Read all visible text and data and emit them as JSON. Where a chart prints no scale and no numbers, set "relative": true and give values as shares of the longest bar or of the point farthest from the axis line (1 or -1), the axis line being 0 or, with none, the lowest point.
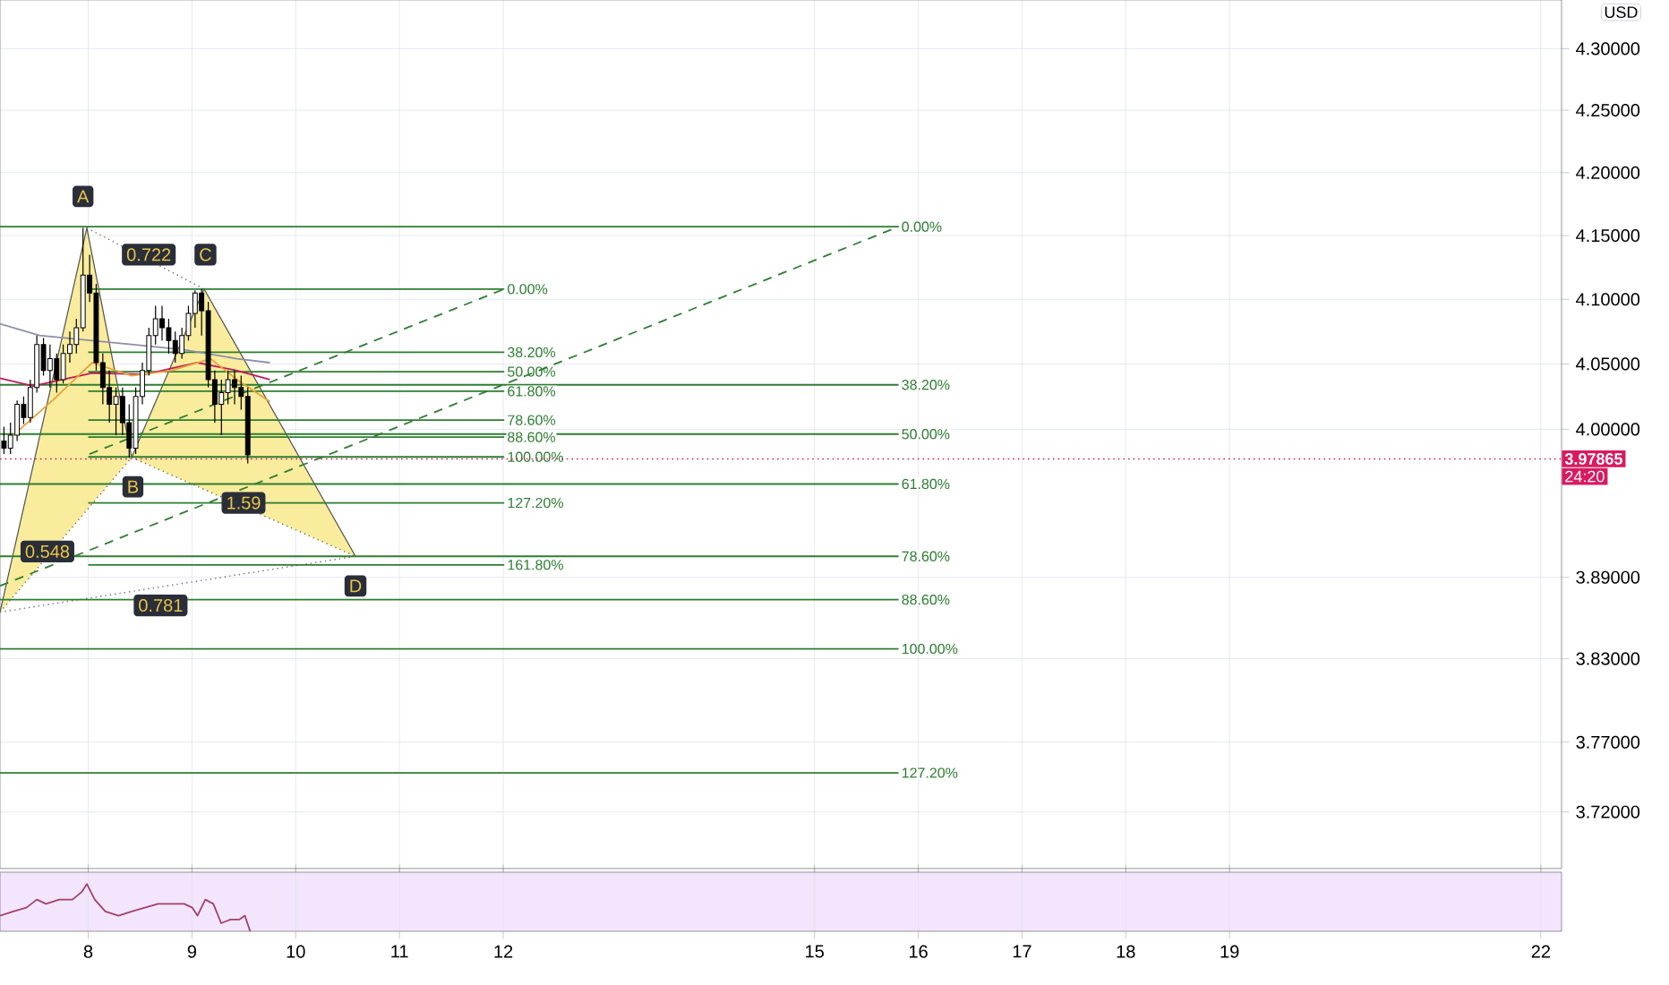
{
  "chart_data": [
    {
      "type": "candlestick",
      "log": "y",
      "grid": true,
      "tick_labels": "y",
      "xlim": [
        7.15,
        22.2
      ],
      "ylim": [
        3.68,
        4.34
      ],
      "xticks": [
        8,
        9,
        10,
        11,
        12,
        15,
        16,
        17,
        18,
        19,
        22
      ],
      "yticks": [
        {
          "value": 4.3,
          "label": "4.30000"
        },
        {
          "value": 4.25,
          "label": "4.25000"
        },
        {
          "value": 4.2,
          "label": "4.20000"
        },
        {
          "value": 4.15,
          "label": "4.15000"
        },
        {
          "value": 4.1,
          "label": "4.10000"
        },
        {
          "value": 4.05,
          "label": "4.05000"
        },
        {
          "value": 4.0,
          "label": "4.00000"
        },
        {
          "value": 3.89,
          "label": "3.89000"
        },
        {
          "value": 3.83,
          "label": "3.83000"
        },
        {
          "value": 3.77,
          "label": "3.77000"
        },
        {
          "value": 3.72,
          "label": "3.72000"
        }
      ],
      "series": [
        {
          "type": "area",
          "color": "#f9ec9d",
          "x": [
            7.15,
            7.987,
            8.419,
            9.117,
            10.576
          ],
          "values": [
            3.864,
            4.156,
            3.979,
            4.108,
            3.905
          ]
        },
        {
          "type": "line",
          "name": "0.00%",
          "color": "#2e7d32",
          "x": [
            7.15,
            15.81
          ],
          "values": [
            4.157,
            4.157
          ]
        },
        {
          "type": "line",
          "name": "38.20%",
          "color": "#2e7d32",
          "x": [
            7.15,
            15.81
          ],
          "values": [
            4.034,
            4.034
          ]
        },
        {
          "type": "line",
          "name": "50.00%",
          "color": "#2e7d32",
          "x": [
            7.15,
            15.81
          ],
          "values": [
            3.997,
            3.997
          ]
        },
        {
          "type": "line",
          "name": "61.80%",
          "color": "#2e7d32",
          "x": [
            7.15,
            15.81
          ],
          "values": [
            3.959,
            3.959
          ]
        },
        {
          "type": "line",
          "name": "78.60%",
          "color": "#2e7d32",
          "x": [
            7.15,
            15.81
          ],
          "values": [
            3.905,
            3.905
          ]
        },
        {
          "type": "line",
          "name": "88.60%",
          "color": "#2e7d32",
          "x": [
            7.15,
            15.81
          ],
          "values": [
            3.873,
            3.873
          ]
        },
        {
          "type": "line",
          "name": "100.00%",
          "color": "#2e7d32",
          "x": [
            7.15,
            15.81
          ],
          "values": [
            3.837,
            3.837
          ]
        },
        {
          "type": "line",
          "name": "127.20%",
          "color": "#2e7d32",
          "x": [
            7.15,
            15.81
          ],
          "values": [
            3.748,
            3.748
          ]
        },
        {
          "type": "line",
          "name": "0.00%",
          "color": "#2e7d32",
          "x": [
            8.0,
            12.01
          ],
          "values": [
            4.108,
            4.108
          ]
        },
        {
          "type": "line",
          "name": "38.20%",
          "color": "#2e7d32",
          "x": [
            8.0,
            12.01
          ],
          "values": [
            4.059,
            4.059
          ]
        },
        {
          "type": "line",
          "name": "50.00%",
          "color": "#2e7d32",
          "x": [
            8.0,
            12.01
          ],
          "values": [
            4.044,
            4.044
          ]
        },
        {
          "type": "line",
          "name": "61.80%",
          "color": "#2e7d32",
          "x": [
            8.0,
            12.01
          ],
          "values": [
            4.029,
            4.029
          ]
        },
        {
          "type": "line",
          "name": "78.60%",
          "color": "#2e7d32",
          "x": [
            8.0,
            12.01
          ],
          "values": [
            4.007,
            4.007
          ]
        },
        {
          "type": "line",
          "name": "88.60%",
          "color": "#2e7d32",
          "x": [
            8.0,
            12.01
          ],
          "values": [
            3.995,
            3.995
          ]
        },
        {
          "type": "line",
          "name": "100.00%",
          "color": "#2e7d32",
          "x": [
            8.0,
            12.01
          ],
          "values": [
            3.98,
            3.98
          ]
        },
        {
          "type": "line",
          "name": "127.20%",
          "color": "#2e7d32",
          "x": [
            8.0,
            12.01
          ],
          "values": [
            3.945,
            3.945
          ]
        },
        {
          "type": "line",
          "name": "161.80%",
          "color": "#2e7d32",
          "x": [
            8.0,
            12.01
          ],
          "values": [
            3.899,
            3.899
          ]
        },
        {
          "type": "line",
          "line_style": "dashed",
          "color": "#2e7d32",
          "x": [
            7.15,
            15.81
          ],
          "values": [
            3.883,
            4.157
          ]
        },
        {
          "type": "line",
          "line_style": "dashed",
          "color": "#2e7d32",
          "x": [
            8.013,
            12.01
          ],
          "values": [
            3.982,
            4.108
          ]
        },
        {
          "type": "line",
          "color": "#8e8ea8",
          "x": [
            7.15,
            7.531,
            8.038,
            8.419,
            8.926,
            9.434,
            9.751
          ],
          "values": [
            4.081,
            4.072,
            4.068,
            4.065,
            4.061,
            4.054,
            4.051
          ]
        },
        {
          "type": "line",
          "color": "#c2185b",
          "x": [
            7.15,
            7.467,
            8.038,
            8.546,
            9.053,
            9.434,
            9.751
          ],
          "values": [
            4.039,
            4.033,
            4.043,
            4.042,
            4.051,
            4.045,
            4.038
          ]
        },
        {
          "type": "line",
          "color": "#e6a23c",
          "x": [
            7.277,
            7.657,
            8.038,
            8.419,
            8.799,
            9.18,
            9.434,
            9.751
          ],
          "values": [
            3.996,
            4.022,
            4.051,
            4.041,
            4.045,
            4.054,
            4.038,
            4.021
          ]
        },
        {
          "type": "candlestick",
          "color": "#000000",
          "x": [
            7.188,
            7.251,
            7.315,
            7.378,
            7.442,
            7.505,
            7.569,
            7.632,
            7.696,
            7.759,
            7.823,
            7.886,
            7.95,
            8.014,
            8.077,
            8.141,
            8.204,
            8.268,
            8.331,
            8.395,
            8.458,
            8.522,
            8.585,
            8.649,
            8.712,
            8.776,
            8.839,
            8.903,
            8.966,
            9.03,
            9.093,
            9.157,
            9.22,
            9.284,
            9.347,
            9.411,
            9.474,
            9.538
          ],
          "ohlc": [
            [
              3.992,
              4.002,
              3.982,
              3.986
            ],
            [
              3.986,
              4.005,
              3.982,
              3.996
            ],
            [
              3.996,
              4.022,
              3.992,
              4.019
            ],
            [
              4.019,
              4.025,
              4.004,
              4.009
            ],
            [
              4.009,
              4.038,
              4.005,
              4.032
            ],
            [
              4.032,
              4.072,
              4.028,
              4.065
            ],
            [
              4.065,
              4.07,
              4.041,
              4.045
            ],
            [
              4.045,
              4.065,
              4.032,
              4.054
            ],
            [
              4.054,
              4.058,
              4.028,
              4.038
            ],
            [
              4.038,
              4.065,
              4.035,
              4.058
            ],
            [
              4.058,
              4.075,
              4.051,
              4.065
            ],
            [
              4.065,
              4.085,
              4.058,
              4.078
            ],
            [
              4.078,
              4.156,
              4.075,
              4.119
            ],
            [
              4.119,
              4.135,
              4.098,
              4.105
            ],
            [
              4.105,
              4.112,
              4.045,
              4.051
            ],
            [
              4.051,
              4.058,
              4.019,
              4.032
            ],
            [
              4.032,
              4.045,
              4.005,
              4.019
            ],
            [
              4.019,
              4.032,
              3.996,
              4.025
            ],
            [
              4.025,
              4.032,
              3.996,
              4.005
            ],
            [
              4.005,
              4.019,
              3.979,
              3.986
            ],
            [
              3.986,
              4.032,
              3.982,
              4.025
            ],
            [
              4.025,
              4.051,
              4.019,
              4.045
            ],
            [
              4.045,
              4.078,
              4.041,
              4.072
            ],
            [
              4.072,
              4.095,
              4.065,
              4.085
            ],
            [
              4.085,
              4.095,
              4.068,
              4.078
            ],
            [
              4.078,
              4.085,
              4.058,
              4.068
            ],
            [
              4.068,
              4.075,
              4.051,
              4.058
            ],
            [
              4.058,
              4.078,
              4.054,
              4.072
            ],
            [
              4.072,
              4.095,
              4.068,
              4.089
            ],
            [
              4.089,
              4.107,
              4.078,
              4.105
            ],
            [
              4.105,
              4.108,
              4.072,
              4.091
            ],
            [
              4.091,
              4.098,
              4.032,
              4.038
            ],
            [
              4.038,
              4.045,
              4.005,
              4.019
            ],
            [
              4.019,
              4.038,
              3.996,
              4.028
            ],
            [
              4.028,
              4.045,
              4.019,
              4.038
            ],
            [
              4.038,
              4.045,
              4.019,
              4.032
            ],
            [
              4.032,
              4.041,
              4.015,
              4.025
            ],
            [
              4.025,
              4.032,
              3.975,
              3.981
            ]
          ]
        }
      ],
      "ref_lines": [
        {
          "axis": "y",
          "value": 3.97865,
          "label": "3.97865",
          "color": "#d81b60",
          "line_style": "dotted"
        }
      ],
      "annotations": [
        "USD",
        "24:20",
        {
          "text": "A",
          "x": 7.95,
          "y": 4.181
        },
        {
          "text": "B",
          "x": 8.431,
          "y": 3.957
        },
        {
          "text": "C",
          "x": 9.13,
          "y": 4.135
        },
        {
          "text": "D",
          "x": 10.576,
          "y": 3.883
        },
        {
          "text": "0.722",
          "x": 8.584,
          "y": 4.135
        },
        {
          "text": "1.59",
          "x": 9.497,
          "y": 3.945
        },
        {
          "text": "0.548",
          "x": 7.607,
          "y": 3.909
        },
        {
          "text": "0.781",
          "x": 8.698,
          "y": 3.869
        }
      ]
    },
    {
      "type": "line",
      "relative": true,
      "grid": "x",
      "tick_labels": "x",
      "xlim": [
        7.15,
        22.2
      ],
      "xticks": [
        8,
        9,
        10,
        11,
        12,
        15,
        16,
        17,
        18,
        19,
        22
      ],
      "series": [
        {
          "color": "#a0406e",
          "x": [
            7.15,
            7.277,
            7.404,
            7.505,
            7.594,
            7.721,
            7.848,
            7.937,
            7.987,
            8.063,
            8.165,
            8.292,
            8.419,
            8.546,
            8.673,
            8.799,
            8.926,
            9.003,
            9.053,
            9.129,
            9.206,
            9.282,
            9.371,
            9.459,
            9.51,
            9.561
          ],
          "values": [
            0.33,
            0.42,
            0.5,
            0.67,
            0.58,
            0.67,
            0.67,
            0.83,
            1,
            0.67,
            0.42,
            0.33,
            0.42,
            0.5,
            0.58,
            0.58,
            0.58,
            0.5,
            0.33,
            0.67,
            0.58,
            0.17,
            0.25,
            0.25,
            0.33,
            0
          ]
        }
      ]
    }
  ]
}
